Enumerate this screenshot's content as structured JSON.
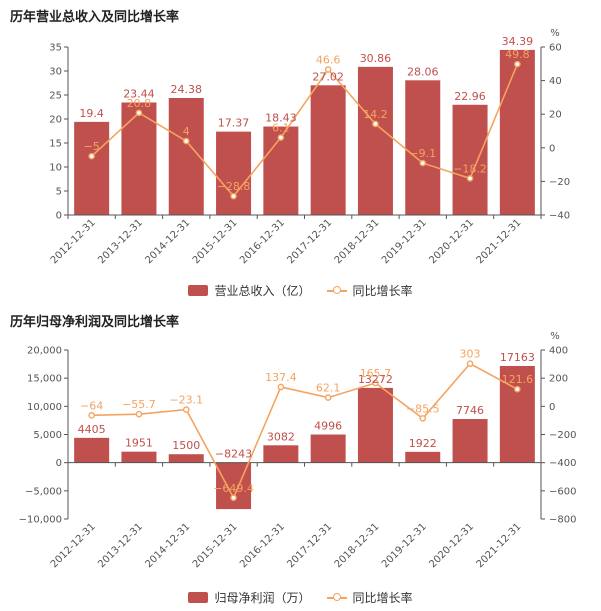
{
  "chart_data": [
    {
      "type": "bar",
      "title": "历年营业总收入及同比增长率",
      "categories": [
        "2012-12-31",
        "2013-12-31",
        "2014-12-31",
        "2015-12-31",
        "2016-12-31",
        "2017-12-31",
        "2018-12-31",
        "2019-12-31",
        "2020-12-31",
        "2021-12-31"
      ],
      "series": [
        {
          "name": "营业总收入（亿）",
          "type": "bar",
          "values": [
            19.4,
            23.44,
            24.38,
            17.37,
            18.43,
            27.02,
            30.86,
            28.06,
            22.96,
            34.39
          ],
          "labels": [
            "19.4",
            "23.44",
            "24.38",
            "17.37",
            "18.43",
            "27.02",
            "30.86",
            "28.06",
            "22.96",
            "34.39"
          ]
        },
        {
          "name": "同比增长率",
          "type": "line",
          "axis": "right",
          "values": [
            -5,
            20.8,
            4,
            -28.8,
            6.1,
            46.6,
            14.2,
            -9.1,
            -18.2,
            49.8
          ],
          "labels": [
            "−5",
            "20.8",
            "4",
            "−28.8",
            "6.1",
            "46.6",
            "14.2",
            "−9.1",
            "−18.2",
            "49.8"
          ]
        }
      ],
      "ylim": [
        0,
        35
      ],
      "y_ticks": [
        "0",
        "5",
        "10",
        "15",
        "20",
        "25",
        "30",
        "35"
      ],
      "y2lim": [
        -40,
        60
      ],
      "y2_ticks": [
        "−40",
        "−20",
        "0",
        "20",
        "40",
        "60"
      ],
      "y2_unit": "%",
      "legend": {
        "bar": "营业总收入（亿）",
        "line": "同比增长率",
        "position": "bottom"
      },
      "colors": {
        "bar": "#c0504d",
        "line": "#f4a460",
        "bar_label": "#c0504d",
        "line_label": "#f4a460"
      }
    },
    {
      "type": "bar",
      "title": "历年归母净利润及同比增长率",
      "categories": [
        "2012-12-31",
        "2013-12-31",
        "2014-12-31",
        "2015-12-31",
        "2016-12-31",
        "2017-12-31",
        "2018-12-31",
        "2019-12-31",
        "2020-12-31",
        "2021-12-31"
      ],
      "series": [
        {
          "name": "归母净利润（万）",
          "type": "bar",
          "values": [
            4405,
            1951,
            1500,
            -8243,
            3082,
            4996,
            13272,
            1922,
            7746,
            17163
          ],
          "labels": [
            "4405",
            "1951",
            "1500",
            "−8243",
            "3082",
            "4996",
            "13272",
            "1922",
            "7746",
            "17163"
          ]
        },
        {
          "name": "同比增长率",
          "type": "line",
          "axis": "right",
          "values": [
            -64,
            -55.7,
            -23.1,
            -649.4,
            137.4,
            62.1,
            165.7,
            -85.5,
            303,
            121.6
          ],
          "labels": [
            "−64",
            "−55.7",
            "−23.1",
            "−649.4",
            "137.4",
            "62.1",
            "165.7",
            "−85.5",
            "303",
            "121.6"
          ]
        }
      ],
      "ylim": [
        -10000,
        20000
      ],
      "y_ticks": [
        "−10,000",
        "−5,000",
        "0",
        "5,000",
        "10,000",
        "15,000",
        "20,000"
      ],
      "y2lim": [
        -800,
        400
      ],
      "y2_ticks": [
        "−800",
        "−600",
        "−400",
        "−200",
        "0",
        "200",
        "400"
      ],
      "y2_unit": "%",
      "legend": {
        "bar": "归母净利润（万）",
        "line": "同比增长率",
        "position": "bottom"
      },
      "colors": {
        "bar": "#c0504d",
        "line": "#f4a460",
        "bar_label": "#c0504d",
        "line_label": "#f4a460"
      }
    }
  ]
}
